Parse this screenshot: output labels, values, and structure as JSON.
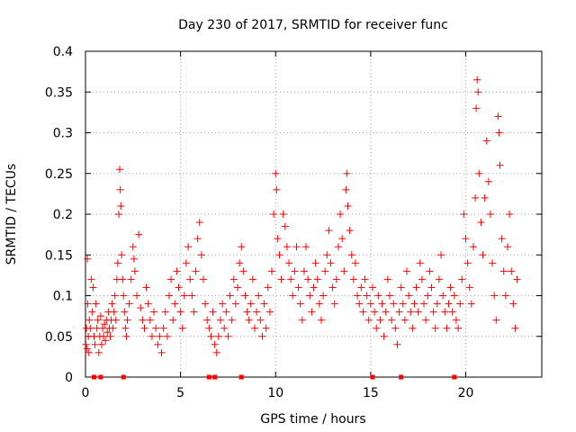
{
  "chart_data": {
    "type": "scatter",
    "title": "Day 230 of 2017, SRMTID for receiver func",
    "xlabel": "GPS time / hours",
    "ylabel": "SRMTID / TECUs",
    "xlim": [
      0,
      24
    ],
    "ylim": [
      0,
      0.4
    ],
    "x_ticks": [
      0,
      5,
      10,
      15,
      20
    ],
    "y_ticks": [
      0,
      0.05,
      0.1,
      0.15,
      0.2,
      0.25,
      0.3,
      0.35,
      0.4
    ],
    "x_tick_labels": [
      "0",
      "5",
      "10",
      "15",
      "20"
    ],
    "y_tick_labels": [
      "0",
      "0.05",
      "0.1",
      "0.15",
      "0.2",
      "0.25",
      "0.3",
      "0.35",
      "0.4"
    ],
    "grid": true,
    "legend": "none",
    "marker": "+",
    "color": "#ff0000",
    "series": [
      {
        "points": [
          [
            0.02,
            0.04
          ],
          [
            0.05,
            0.06
          ],
          [
            0.08,
            0.035
          ],
          [
            0.1,
            0.145
          ],
          [
            0.12,
            0.09
          ],
          [
            0.15,
            0.05
          ],
          [
            0.18,
            0.03
          ],
          [
            0.2,
            0.07
          ],
          [
            0.25,
            0.06
          ],
          [
            0.3,
            0.12
          ],
          [
            0.35,
            0.08
          ],
          [
            0.4,
            0.11
          ],
          [
            0.45,
            0.05
          ],
          [
            0.5,
            0.04
          ],
          [
            0.55,
            0.09
          ],
          [
            0.6,
            0.06
          ],
          [
            0.65,
            0.07
          ],
          [
            0.7,
            0.03
          ],
          [
            0.75,
            0.05
          ],
          [
            0.8,
            0.075
          ],
          [
            0.85,
            0.04
          ],
          [
            0.9,
            0.06
          ],
          [
            0.95,
            0.05
          ],
          [
            1.0,
            0.065
          ],
          [
            1.05,
            0.045
          ],
          [
            1.1,
            0.07
          ],
          [
            1.15,
            0.055
          ],
          [
            1.2,
            0.08
          ],
          [
            1.25,
            0.06
          ],
          [
            1.3,
            0.05
          ],
          [
            1.35,
            0.07
          ],
          [
            1.4,
            0.09
          ],
          [
            1.45,
            0.06
          ],
          [
            1.5,
            0.08
          ],
          [
            1.55,
            0.1
          ],
          [
            1.6,
            0.07
          ],
          [
            1.65,
            0.12
          ],
          [
            1.7,
            0.14
          ],
          [
            1.75,
            0.2
          ],
          [
            1.8,
            0.255
          ],
          [
            1.83,
            0.23
          ],
          [
            1.86,
            0.21
          ],
          [
            1.9,
            0.15
          ],
          [
            1.95,
            0.12
          ],
          [
            2.0,
            0.1
          ],
          [
            2.05,
            0.08
          ],
          [
            2.1,
            0.06
          ],
          [
            2.15,
            0.05
          ],
          [
            2.2,
            0.07
          ],
          [
            2.3,
            0.09
          ],
          [
            2.4,
            0.12
          ],
          [
            2.5,
            0.16
          ],
          [
            2.55,
            0.145
          ],
          [
            2.6,
            0.13
          ],
          [
            2.7,
            0.1
          ],
          [
            2.8,
            0.175
          ],
          [
            2.9,
            0.085
          ],
          [
            3.0,
            0.07
          ],
          [
            3.1,
            0.06
          ],
          [
            3.2,
            0.11
          ],
          [
            3.3,
            0.09
          ],
          [
            3.4,
            0.07
          ],
          [
            3.5,
            0.05
          ],
          [
            3.6,
            0.08
          ],
          [
            3.7,
            0.06
          ],
          [
            3.8,
            0.04
          ],
          [
            3.9,
            0.05
          ],
          [
            4.0,
            0.03
          ],
          [
            4.1,
            0.06
          ],
          [
            4.2,
            0.08
          ],
          [
            4.3,
            0.05
          ],
          [
            4.4,
            0.1
          ],
          [
            4.5,
            0.12
          ],
          [
            4.6,
            0.07
          ],
          [
            4.7,
            0.09
          ],
          [
            4.8,
            0.13
          ],
          [
            4.9,
            0.11
          ],
          [
            5.0,
            0.08
          ],
          [
            5.1,
            0.06
          ],
          [
            5.2,
            0.1
          ],
          [
            5.3,
            0.14
          ],
          [
            5.4,
            0.16
          ],
          [
            5.5,
            0.12
          ],
          [
            5.6,
            0.1
          ],
          [
            5.7,
            0.08
          ],
          [
            5.8,
            0.13
          ],
          [
            5.9,
            0.17
          ],
          [
            6.0,
            0.19
          ],
          [
            6.1,
            0.15
          ],
          [
            6.2,
            0.12
          ],
          [
            6.3,
            0.09
          ],
          [
            6.4,
            0.07
          ],
          [
            6.5,
            0.06
          ],
          [
            6.6,
            0.05
          ],
          [
            6.7,
            0.08
          ],
          [
            6.8,
            0.04
          ],
          [
            6.9,
            0.03
          ],
          [
            7.0,
            0.05
          ],
          [
            7.1,
            0.07
          ],
          [
            7.2,
            0.09
          ],
          [
            7.3,
            0.06
          ],
          [
            7.4,
            0.08
          ],
          [
            7.5,
            0.05
          ],
          [
            7.6,
            0.1
          ],
          [
            7.7,
            0.07
          ],
          [
            7.8,
            0.12
          ],
          [
            7.9,
            0.09
          ],
          [
            8.0,
            0.11
          ],
          [
            8.1,
            0.14
          ],
          [
            8.2,
            0.16
          ],
          [
            8.3,
            0.13
          ],
          [
            8.4,
            0.1
          ],
          [
            8.5,
            0.08
          ],
          [
            8.6,
            0.07
          ],
          [
            8.7,
            0.09
          ],
          [
            8.8,
            0.12
          ],
          [
            8.9,
            0.06
          ],
          [
            9.0,
            0.08
          ],
          [
            9.1,
            0.1
          ],
          [
            9.2,
            0.07
          ],
          [
            9.3,
            0.05
          ],
          [
            9.4,
            0.09
          ],
          [
            9.5,
            0.06
          ],
          [
            9.6,
            0.11
          ],
          [
            9.7,
            0.08
          ],
          [
            9.8,
            0.13
          ],
          [
            9.9,
            0.2
          ],
          [
            10.0,
            0.25
          ],
          [
            10.05,
            0.23
          ],
          [
            10.1,
            0.17
          ],
          [
            10.2,
            0.15
          ],
          [
            10.3,
            0.12
          ],
          [
            10.4,
            0.2
          ],
          [
            10.5,
            0.185
          ],
          [
            10.6,
            0.16
          ],
          [
            10.7,
            0.14
          ],
          [
            10.8,
            0.12
          ],
          [
            10.9,
            0.1
          ],
          [
            11.0,
            0.13
          ],
          [
            11.1,
            0.16
          ],
          [
            11.2,
            0.11
          ],
          [
            11.3,
            0.09
          ],
          [
            11.4,
            0.07
          ],
          [
            11.5,
            0.13
          ],
          [
            11.6,
            0.16
          ],
          [
            11.7,
            0.12
          ],
          [
            11.8,
            0.1
          ],
          [
            11.9,
            0.08
          ],
          [
            12.0,
            0.11
          ],
          [
            12.1,
            0.14
          ],
          [
            12.2,
            0.12
          ],
          [
            12.3,
            0.09
          ],
          [
            12.4,
            0.07
          ],
          [
            12.5,
            0.1
          ],
          [
            12.6,
            0.13
          ],
          [
            12.7,
            0.15
          ],
          [
            12.8,
            0.18
          ],
          [
            12.9,
            0.14
          ],
          [
            13.0,
            0.11
          ],
          [
            13.1,
            0.09
          ],
          [
            13.2,
            0.12
          ],
          [
            13.3,
            0.16
          ],
          [
            13.4,
            0.2
          ],
          [
            13.5,
            0.17
          ],
          [
            13.6,
            0.13
          ],
          [
            13.7,
            0.23
          ],
          [
            13.75,
            0.25
          ],
          [
            13.8,
            0.21
          ],
          [
            13.9,
            0.18
          ],
          [
            14.0,
            0.15
          ],
          [
            14.1,
            0.12
          ],
          [
            14.2,
            0.14
          ],
          [
            14.3,
            0.1
          ],
          [
            14.4,
            0.09
          ],
          [
            14.5,
            0.11
          ],
          [
            14.6,
            0.08
          ],
          [
            14.7,
            0.12
          ],
          [
            14.8,
            0.1
          ],
          [
            14.9,
            0.07
          ],
          [
            15.0,
            0.09
          ],
          [
            15.1,
            0.11
          ],
          [
            15.2,
            0.08
          ],
          [
            15.3,
            0.06
          ],
          [
            15.4,
            0.1
          ],
          [
            15.5,
            0.07
          ],
          [
            15.6,
            0.09
          ],
          [
            15.7,
            0.05
          ],
          [
            15.8,
            0.08
          ],
          [
            15.9,
            0.12
          ],
          [
            16.0,
            0.1
          ],
          [
            16.1,
            0.07
          ],
          [
            16.2,
            0.09
          ],
          [
            16.3,
            0.06
          ],
          [
            16.4,
            0.04
          ],
          [
            16.5,
            0.08
          ],
          [
            16.6,
            0.11
          ],
          [
            16.7,
            0.09
          ],
          [
            16.8,
            0.07
          ],
          [
            16.9,
            0.13
          ],
          [
            17.0,
            0.1
          ],
          [
            17.1,
            0.08
          ],
          [
            17.2,
            0.06
          ],
          [
            17.3,
            0.09
          ],
          [
            17.4,
            0.11
          ],
          [
            17.5,
            0.08
          ],
          [
            17.6,
            0.14
          ],
          [
            17.7,
            0.12
          ],
          [
            17.8,
            0.09
          ],
          [
            17.9,
            0.07
          ],
          [
            18.0,
            0.1
          ],
          [
            18.1,
            0.13
          ],
          [
            18.2,
            0.11
          ],
          [
            18.3,
            0.08
          ],
          [
            18.4,
            0.06
          ],
          [
            18.5,
            0.09
          ],
          [
            18.6,
            0.12
          ],
          [
            18.7,
            0.15
          ],
          [
            18.8,
            0.1
          ],
          [
            18.9,
            0.08
          ],
          [
            19.0,
            0.06
          ],
          [
            19.1,
            0.09
          ],
          [
            19.2,
            0.11
          ],
          [
            19.3,
            0.08
          ],
          [
            19.4,
            0.1
          ],
          [
            19.5,
            0.07
          ],
          [
            19.6,
            0.06
          ],
          [
            19.7,
            0.09
          ],
          [
            19.8,
            0.12
          ],
          [
            19.9,
            0.2
          ],
          [
            20.0,
            0.17
          ],
          [
            20.1,
            0.14
          ],
          [
            20.2,
            0.11
          ],
          [
            20.3,
            0.09
          ],
          [
            20.4,
            0.16
          ],
          [
            20.5,
            0.22
          ],
          [
            20.55,
            0.33
          ],
          [
            20.6,
            0.365
          ],
          [
            20.65,
            0.35
          ],
          [
            20.7,
            0.25
          ],
          [
            20.8,
            0.19
          ],
          [
            20.9,
            0.15
          ],
          [
            21.0,
            0.22
          ],
          [
            21.1,
            0.29
          ],
          [
            21.2,
            0.24
          ],
          [
            21.3,
            0.2
          ],
          [
            21.4,
            0.14
          ],
          [
            21.5,
            0.1
          ],
          [
            21.6,
            0.07
          ],
          [
            21.7,
            0.32
          ],
          [
            21.75,
            0.3
          ],
          [
            21.8,
            0.26
          ],
          [
            21.9,
            0.17
          ],
          [
            22.0,
            0.13
          ],
          [
            22.1,
            0.1
          ],
          [
            22.2,
            0.16
          ],
          [
            22.3,
            0.2
          ],
          [
            22.4,
            0.13
          ],
          [
            22.5,
            0.09
          ],
          [
            22.6,
            0.06
          ],
          [
            22.7,
            0.12
          ]
        ]
      }
    ],
    "x_axis_markers": [
      0.45,
      0.8,
      2.0,
      6.5,
      6.8,
      8.2,
      15.1,
      16.6,
      19.4
    ]
  }
}
